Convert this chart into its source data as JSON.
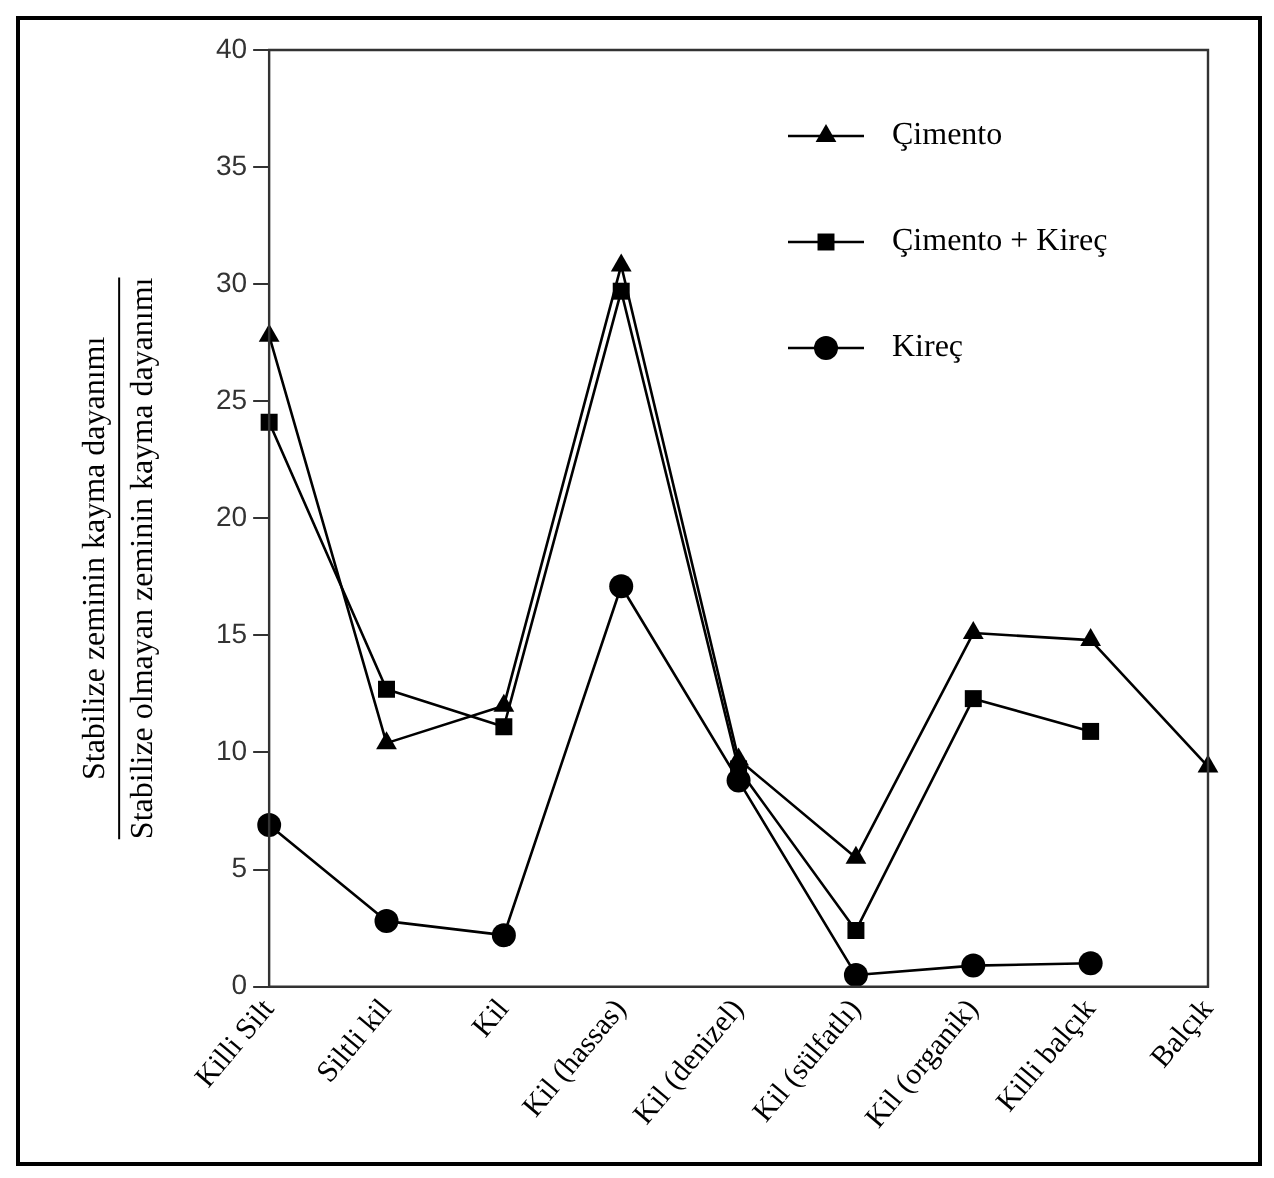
{
  "chart_data": {
    "type": "line",
    "ylabel": "Stabilize zeminin kayma dayanımı\nStabilize olmayan zeminin kayma dayanımı",
    "categories": [
      "Killi Silt",
      "Siltli kil",
      "Kil",
      "Kil (hassas)",
      "Kil (denizel)",
      "Kil (sülfatlı)",
      "Kil (organik)",
      "Killi balçık",
      "Balçık"
    ],
    "series": [
      {
        "name": "Çimento",
        "color": "#000000",
        "marker": "triangle",
        "values": [
          27.8,
          10.4,
          12,
          30.8,
          9.7,
          5.5,
          15.1,
          14.8,
          9.4
        ]
      },
      {
        "name": "Çimento + Kireç",
        "color": "#000000",
        "marker": "square",
        "values": [
          24.1,
          12.7,
          11.1,
          29.7,
          9.3,
          2.4,
          12.3,
          10.9,
          null
        ]
      },
      {
        "name": "Kireç",
        "color": "#000000",
        "marker": "circle",
        "values": [
          6.9,
          2.8,
          2.2,
          17.1,
          8.8,
          0.5,
          0.9,
          1.0,
          null
        ]
      }
    ],
    "ylim": [
      0,
      40
    ],
    "yticks": [
      0,
      5,
      10,
      15,
      20,
      25,
      30,
      35,
      40
    ],
    "grid": false,
    "legend": "top right",
    "line_style": "solid"
  }
}
